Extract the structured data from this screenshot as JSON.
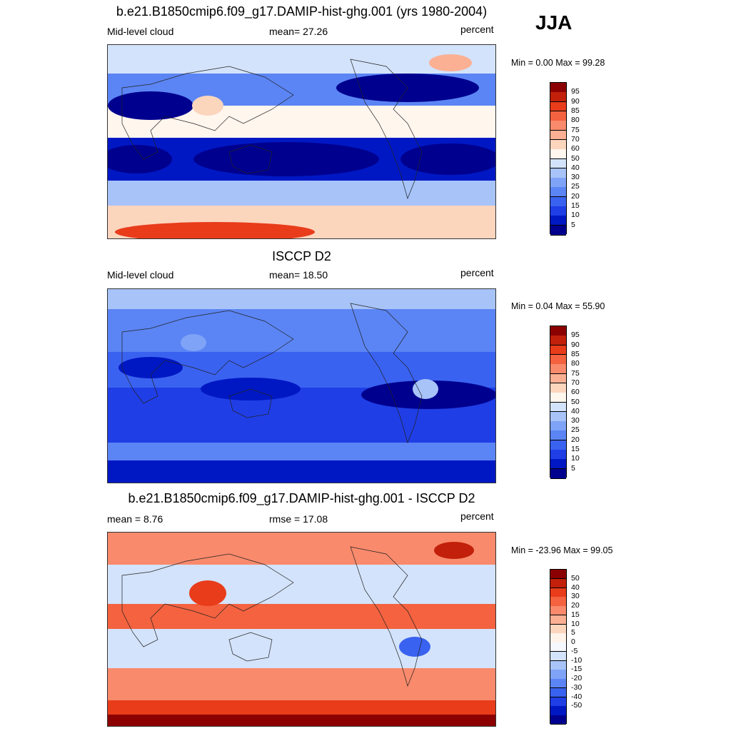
{
  "season": "JJA",
  "colors": {
    "abs_scale": [
      "#00008f",
      "#0018c4",
      "#1f3ee6",
      "#3a62f0",
      "#5b85f4",
      "#7fa3f6",
      "#a7c3f8",
      "#d3e3fb",
      "#fff6ee",
      "#fcd5bd",
      "#fbb094",
      "#f98a6c",
      "#f4623f",
      "#e83c1b",
      "#c2200a",
      "#8b0000"
    ],
    "diff_scale": [
      "#00008f",
      "#0018c4",
      "#1f3ee6",
      "#3a62f0",
      "#5b85f4",
      "#7fa3f6",
      "#a7c3f8",
      "#d3e3fb",
      "#f5f9ff",
      "#fff3ea",
      "#fcd5bd",
      "#fbb094",
      "#f98a6c",
      "#f4623f",
      "#e83c1b",
      "#c2200a",
      "#8b0000"
    ]
  },
  "panels": [
    {
      "title": "b.e21.B1850cmip6.f09_g17.DAMIP-hist-ghg.001 (yrs 1980-2004)",
      "left_label": "Mid-level cloud",
      "mid_label": "mean=  27.26",
      "right_label": "percent",
      "minmax": "Min =   0.00 Max =  99.28"
    },
    {
      "title": "ISCCP D2",
      "left_label": "Mid-level cloud",
      "mid_label": "mean=  18.50",
      "right_label": "percent",
      "minmax": "Min =   0.04 Max =  55.90"
    },
    {
      "title": "b.e21.B1850cmip6.f09_g17.DAMIP-hist-ghg.001 - ISCCP D2",
      "left_label": "mean =   8.76",
      "mid_label": "rmse =  17.08",
      "right_label": "percent",
      "minmax": "Min = -23.96 Max =  99.05"
    }
  ],
  "chart_data": [
    {
      "type": "heatmap",
      "title": "b.e21.B1850cmip6.f09_g17.DAMIP-hist-ghg.001 (yrs 1980-2004)",
      "variable": "Mid-level cloud",
      "units": "percent",
      "mean": 27.26,
      "min": 0.0,
      "max": 99.28,
      "colorbar_levels": [
        5,
        10,
        15,
        20,
        25,
        30,
        40,
        50,
        60,
        70,
        75,
        80,
        85,
        90,
        95
      ]
    },
    {
      "type": "heatmap",
      "title": "ISCCP D2",
      "variable": "Mid-level cloud",
      "units": "percent",
      "mean": 18.5,
      "min": 0.04,
      "max": 55.9,
      "colorbar_levels": [
        5,
        10,
        15,
        20,
        25,
        30,
        40,
        50,
        60,
        70,
        75,
        80,
        85,
        90,
        95
      ]
    },
    {
      "type": "heatmap",
      "title": "b.e21.B1850cmip6.f09_g17.DAMIP-hist-ghg.001 - ISCCP D2",
      "units": "percent",
      "mean": 8.76,
      "rmse": 17.08,
      "min": -23.96,
      "max": 99.05,
      "colorbar_levels": [
        -50,
        -40,
        -30,
        -20,
        -15,
        -10,
        -5,
        0,
        5,
        10,
        15,
        20,
        30,
        40,
        50
      ]
    }
  ]
}
